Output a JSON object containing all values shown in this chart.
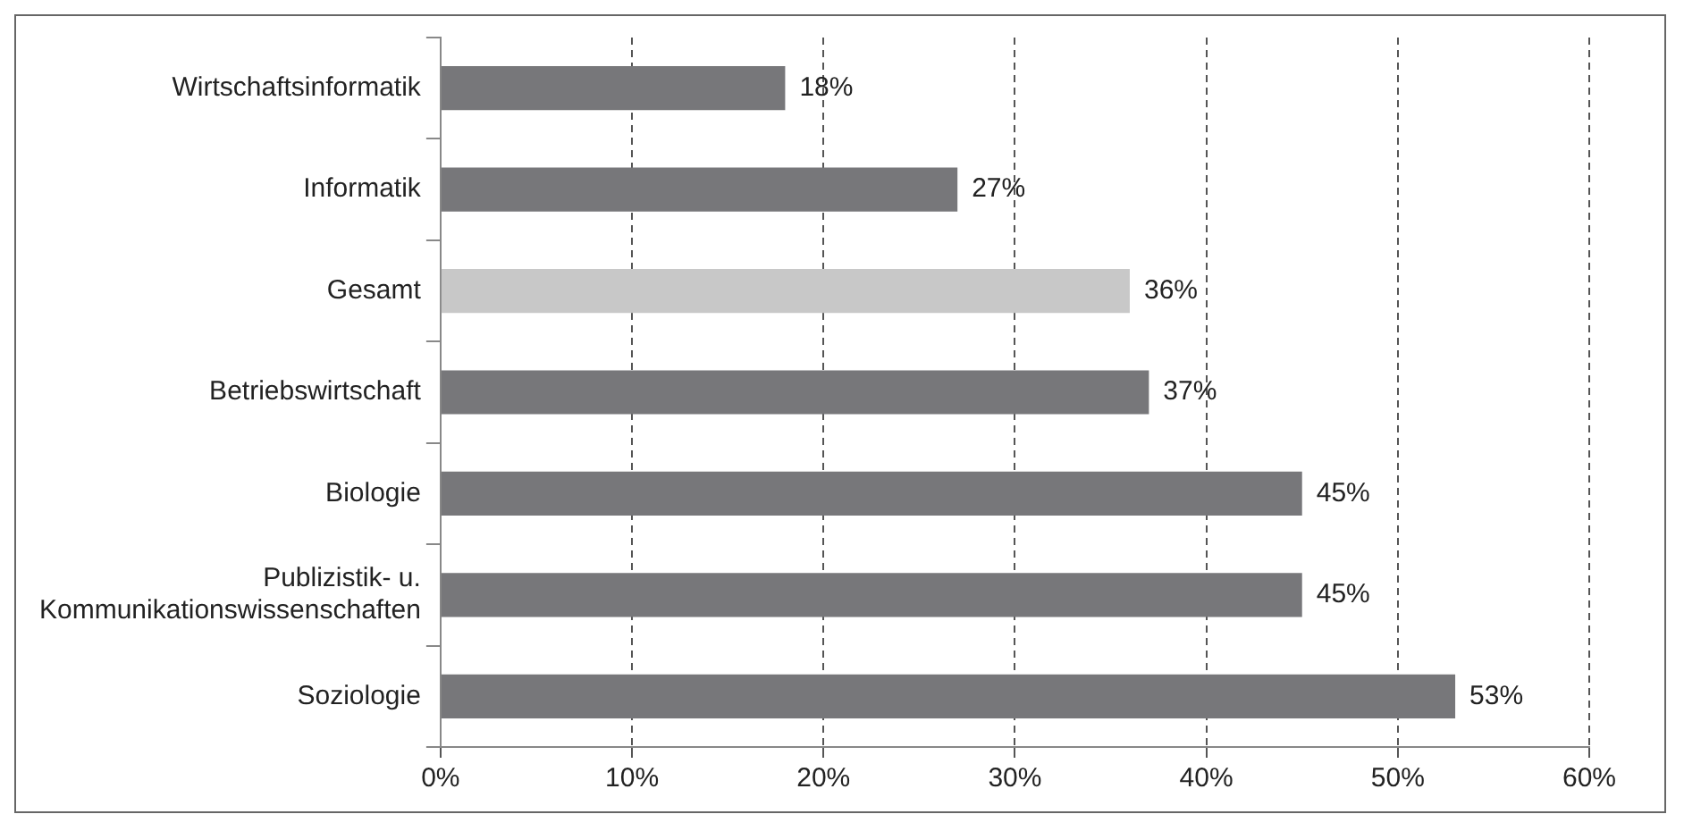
{
  "chart_data": {
    "type": "bar",
    "orientation": "horizontal",
    "categories": [
      "Wirtschaftsinformatik",
      "Informatik",
      "Gesamt",
      "Betriebswirtschaft",
      "Biologie",
      "Publizistik- u. Kommunikationswissenschaften",
      "Soziologie"
    ],
    "values": [
      18,
      27,
      36,
      37,
      45,
      45,
      53
    ],
    "colors": [
      "#77777a",
      "#77777a",
      "#c8c8c8",
      "#77777a",
      "#77777a",
      "#77777a",
      "#77777a"
    ],
    "value_labels": [
      "18%",
      "27%",
      "36%",
      "37%",
      "45%",
      "45%",
      "53%"
    ],
    "xlim": [
      0,
      60
    ],
    "xticks": [
      {
        "value": 0,
        "label": "0%"
      },
      {
        "value": 10,
        "label": "10%"
      },
      {
        "value": 20,
        "label": "20%"
      },
      {
        "value": 30,
        "label": "30%"
      },
      {
        "value": 40,
        "label": "40%"
      },
      {
        "value": 50,
        "label": "50%"
      },
      {
        "value": 60,
        "label": "60%"
      }
    ],
    "grid": "x",
    "legend": false
  }
}
